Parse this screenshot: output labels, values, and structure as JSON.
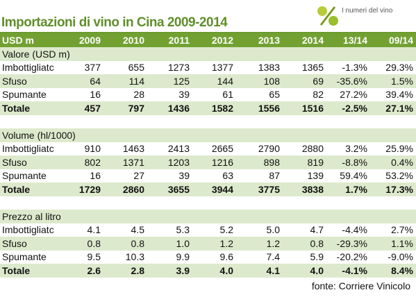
{
  "title": "Importazioni di vino in Cina 2009-2014",
  "logo": "I numeri del vino",
  "header": [
    "USD m",
    "2009",
    "2010",
    "2011",
    "2012",
    "2013",
    "2014",
    "13/14",
    "09/14"
  ],
  "sections": [
    {
      "label": "Valore (USD m)",
      "rows": [
        [
          "Imbottigliatc",
          "377",
          "655",
          "1273",
          "1377",
          "1383",
          "1365",
          "-1.3%",
          "29.3%"
        ],
        [
          "Sfuso",
          "64",
          "114",
          "125",
          "144",
          "108",
          "69",
          "-35.6%",
          "1.5%"
        ],
        [
          "Spumante",
          "16",
          "28",
          "39",
          "61",
          "65",
          "82",
          "27.2%",
          "39.4%"
        ],
        [
          "Totale",
          "457",
          "797",
          "1436",
          "1582",
          "1556",
          "1516",
          "-2.5%",
          "27.1%"
        ]
      ]
    },
    {
      "label": "Volume (hl/1000)",
      "rows": [
        [
          "Imbottigliatc",
          "910",
          "1463",
          "2413",
          "2665",
          "2790",
          "2880",
          "3.2%",
          "25.9%"
        ],
        [
          "Sfuso",
          "802",
          "1371",
          "1203",
          "1216",
          "898",
          "819",
          "-8.8%",
          "0.4%"
        ],
        [
          "Spumante",
          "16",
          "27",
          "39",
          "63",
          "87",
          "139",
          "59.4%",
          "53.2%"
        ],
        [
          "Totale",
          "1729",
          "2860",
          "3655",
          "3944",
          "3775",
          "3838",
          "1.7%",
          "17.3%"
        ]
      ]
    },
    {
      "label": "Prezzo al litro",
      "rows": [
        [
          "Imbottigliatc",
          "4.1",
          "4.5",
          "5.3",
          "5.2",
          "5.0",
          "4.7",
          "-4.4%",
          "2.7%"
        ],
        [
          "Sfuso",
          "0.8",
          "0.8",
          "1.0",
          "1.2",
          "1.2",
          "0.8",
          "-29.3%",
          "1.1%"
        ],
        [
          "Spumante",
          "9.5",
          "10.3",
          "9.9",
          "9.6",
          "7.4",
          "5.9",
          "-20.2%",
          "-9.0%"
        ],
        [
          "Totale",
          "2.6",
          "2.8",
          "3.9",
          "4.0",
          "4.1",
          "4.0",
          "-4.1%",
          "8.4%"
        ]
      ]
    }
  ],
  "source": "fonte: Corriere Vinicolo"
}
